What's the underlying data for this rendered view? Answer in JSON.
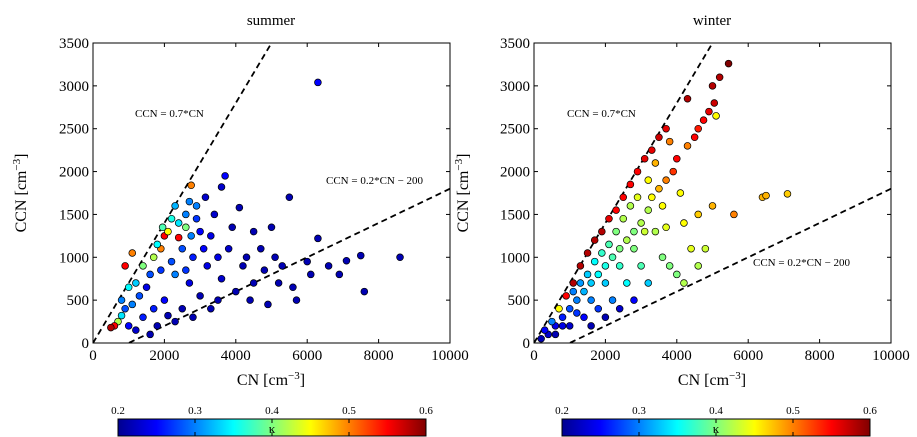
{
  "chart_data": [
    {
      "type": "scatter",
      "title": "summer",
      "xlabel": "CN [cm",
      "ylabel": "CCN [cm",
      "unit_exponent": "−3",
      "xlim": [
        0,
        10000
      ],
      "ylim": [
        0,
        3500
      ],
      "xticks": [
        0,
        2000,
        4000,
        6000,
        8000,
        10000
      ],
      "yticks": [
        0,
        500,
        1000,
        1500,
        2000,
        2500,
        3000,
        3500
      ],
      "color_variable": "κ",
      "lines": [
        {
          "label": "CCN = 0.7*CN",
          "slope": 0.7,
          "intercept": 0
        },
        {
          "label": "CCN = 0.2*CN − 200",
          "slope": 0.2,
          "intercept": -200
        }
      ],
      "points": [
        [
          6300,
          3040,
          0.25
        ],
        [
          2750,
          1840,
          0.5
        ],
        [
          3700,
          1950,
          0.25
        ],
        [
          2700,
          1650,
          0.3
        ],
        [
          2300,
          1600,
          0.32
        ],
        [
          2900,
          1600,
          0.3
        ],
        [
          3600,
          1820,
          0.23
        ],
        [
          5500,
          1700,
          0.22
        ],
        [
          4100,
          1580,
          0.22
        ],
        [
          2200,
          1450,
          0.36
        ],
        [
          2600,
          1500,
          0.3
        ],
        [
          2000,
          1250,
          0.55
        ],
        [
          2400,
          1230,
          0.55
        ],
        [
          1900,
          1100,
          0.5
        ],
        [
          900,
          900,
          0.55
        ],
        [
          1100,
          1050,
          0.5
        ],
        [
          1800,
          1150,
          0.35
        ],
        [
          3000,
          1300,
          0.25
        ],
        [
          3300,
          1250,
          0.24
        ],
        [
          4500,
          1300,
          0.22
        ],
        [
          5000,
          1350,
          0.22
        ],
        [
          6300,
          1220,
          0.22
        ],
        [
          6000,
          950,
          0.22
        ],
        [
          7100,
          960,
          0.22
        ],
        [
          7500,
          1020,
          0.22
        ],
        [
          8600,
          1000,
          0.22
        ],
        [
          6900,
          800,
          0.22
        ],
        [
          7600,
          600,
          0.22
        ],
        [
          5700,
          500,
          0.22
        ],
        [
          5200,
          700,
          0.22
        ],
        [
          4800,
          850,
          0.22
        ],
        [
          4300,
          1000,
          0.22
        ],
        [
          3800,
          1100,
          0.23
        ],
        [
          3200,
          900,
          0.24
        ],
        [
          2800,
          1000,
          0.26
        ],
        [
          2500,
          1100,
          0.28
        ],
        [
          2200,
          950,
          0.28
        ],
        [
          1900,
          850,
          0.27
        ],
        [
          1600,
          800,
          0.28
        ],
        [
          1500,
          650,
          0.24
        ],
        [
          1300,
          550,
          0.28
        ],
        [
          1100,
          450,
          0.3
        ],
        [
          900,
          400,
          0.28
        ],
        [
          800,
          320,
          0.34
        ],
        [
          700,
          250,
          0.42
        ],
        [
          600,
          200,
          0.55
        ],
        [
          500,
          180,
          0.58
        ],
        [
          1000,
          200,
          0.25
        ],
        [
          1200,
          150,
          0.23
        ],
        [
          1600,
          100,
          0.22
        ],
        [
          1800,
          200,
          0.22
        ],
        [
          2100,
          320,
          0.22
        ],
        [
          2500,
          400,
          0.22
        ],
        [
          3000,
          550,
          0.22
        ],
        [
          3500,
          500,
          0.22
        ],
        [
          4000,
          600,
          0.22
        ],
        [
          4500,
          700,
          0.22
        ],
        [
          5300,
          900,
          0.22
        ],
        [
          4700,
          1100,
          0.22
        ],
        [
          3600,
          750,
          0.23
        ],
        [
          2700,
          700,
          0.24
        ],
        [
          2000,
          500,
          0.25
        ],
        [
          1700,
          400,
          0.26
        ],
        [
          3900,
          1350,
          0.22
        ],
        [
          3400,
          1500,
          0.23
        ],
        [
          2900,
          1450,
          0.27
        ],
        [
          2600,
          1350,
          0.4
        ],
        [
          2100,
          1300,
          0.45
        ],
        [
          1700,
          1000,
          0.42
        ],
        [
          1400,
          900,
          0.4
        ],
        [
          1200,
          700,
          0.33
        ],
        [
          2300,
          800,
          0.3
        ],
        [
          3100,
          1100,
          0.25
        ],
        [
          4200,
          900,
          0.22
        ],
        [
          5100,
          1000,
          0.22
        ],
        [
          5600,
          650,
          0.22
        ],
        [
          6100,
          800,
          0.22
        ],
        [
          6600,
          900,
          0.22
        ],
        [
          4900,
          450,
          0.22
        ],
        [
          4400,
          500,
          0.22
        ],
        [
          3300,
          400,
          0.22
        ],
        [
          2800,
          300,
          0.22
        ],
        [
          2300,
          250,
          0.22
        ],
        [
          1400,
          300,
          0.26
        ],
        [
          800,
          500,
          0.3
        ],
        [
          1000,
          650,
          0.35
        ],
        [
          2600,
          850,
          0.27
        ],
        [
          3500,
          1000,
          0.24
        ],
        [
          2400,
          1400,
          0.34
        ],
        [
          1950,
          1350,
          0.38
        ],
        [
          2750,
          1250,
          0.3
        ],
        [
          3150,
          1700,
          0.23
        ]
      ]
    },
    {
      "type": "scatter",
      "title": "winter",
      "xlabel": "CN [cm",
      "ylabel": "CCN [cm",
      "unit_exponent": "−3",
      "xlim": [
        0,
        10000
      ],
      "ylim": [
        0,
        3500
      ],
      "xticks": [
        0,
        2000,
        4000,
        6000,
        8000,
        10000
      ],
      "yticks": [
        0,
        500,
        1000,
        1500,
        2000,
        2500,
        3000,
        3500
      ],
      "color_variable": "κ",
      "lines": [
        {
          "label": "CCN = 0.7*CN",
          "slope": 0.7,
          "intercept": 0
        },
        {
          "label": "CCN = 0.2*CN − 200",
          "slope": 0.2,
          "intercept": -200
        }
      ],
      "points": [
        [
          5450,
          3260,
          0.6
        ],
        [
          5200,
          3100,
          0.58
        ],
        [
          5000,
          3000,
          0.58
        ],
        [
          5050,
          2800,
          0.57
        ],
        [
          4900,
          2700,
          0.56
        ],
        [
          4750,
          2600,
          0.55
        ],
        [
          4600,
          2500,
          0.54
        ],
        [
          5100,
          2650,
          0.45
        ],
        [
          4500,
          2400,
          0.55
        ],
        [
          4300,
          2300,
          0.5
        ],
        [
          4000,
          2150,
          0.55
        ],
        [
          3900,
          2000,
          0.53
        ],
        [
          3700,
          1900,
          0.5
        ],
        [
          3500,
          1800,
          0.48
        ],
        [
          3300,
          1700,
          0.45
        ],
        [
          4100,
          1750,
          0.45
        ],
        [
          3600,
          1600,
          0.45
        ],
        [
          3200,
          1550,
          0.42
        ],
        [
          3000,
          1400,
          0.42
        ],
        [
          2800,
          1300,
          0.4
        ],
        [
          2600,
          1200,
          0.42
        ],
        [
          2400,
          1100,
          0.4
        ],
        [
          2200,
          1000,
          0.38
        ],
        [
          2000,
          900,
          0.36
        ],
        [
          1800,
          800,
          0.35
        ],
        [
          1600,
          700,
          0.33
        ],
        [
          1400,
          600,
          0.32
        ],
        [
          1200,
          500,
          0.3
        ],
        [
          1000,
          400,
          0.28
        ],
        [
          800,
          300,
          0.26
        ],
        [
          600,
          200,
          0.24
        ],
        [
          400,
          100,
          0.23
        ],
        [
          200,
          50,
          0.22
        ],
        [
          300,
          150,
          0.25
        ],
        [
          500,
          250,
          0.3
        ],
        [
          700,
          400,
          0.45
        ],
        [
          900,
          550,
          0.55
        ],
        [
          1100,
          700,
          0.58
        ],
        [
          1300,
          900,
          0.58
        ],
        [
          1500,
          1050,
          0.58
        ],
        [
          1700,
          1200,
          0.58
        ],
        [
          1900,
          1300,
          0.58
        ],
        [
          2100,
          1450,
          0.56
        ],
        [
          2300,
          1550,
          0.55
        ],
        [
          2500,
          1700,
          0.55
        ],
        [
          2700,
          1850,
          0.55
        ],
        [
          2900,
          2000,
          0.55
        ],
        [
          3100,
          2150,
          0.56
        ],
        [
          3300,
          2250,
          0.56
        ],
        [
          3500,
          2400,
          0.57
        ],
        [
          3700,
          2500,
          0.56
        ],
        [
          4300,
          2850,
          0.58
        ],
        [
          3800,
          2350,
          0.5
        ],
        [
          3400,
          2100,
          0.48
        ],
        [
          3200,
          1900,
          0.45
        ],
        [
          2900,
          1700,
          0.44
        ],
        [
          2700,
          1600,
          0.42
        ],
        [
          2500,
          1450,
          0.42
        ],
        [
          2300,
          1300,
          0.4
        ],
        [
          2100,
          1150,
          0.38
        ],
        [
          1900,
          1050,
          0.37
        ],
        [
          1700,
          950,
          0.35
        ],
        [
          1500,
          800,
          0.33
        ],
        [
          1300,
          700,
          0.31
        ],
        [
          1100,
          600,
          0.3
        ],
        [
          3400,
          1300,
          0.42
        ],
        [
          3700,
          1350,
          0.44
        ],
        [
          4200,
          1400,
          0.45
        ],
        [
          4600,
          1500,
          0.47
        ],
        [
          5000,
          1600,
          0.48
        ],
        [
          6400,
          1700,
          0.48
        ],
        [
          6500,
          1720,
          0.48
        ],
        [
          7100,
          1740,
          0.47
        ],
        [
          5600,
          1500,
          0.5
        ],
        [
          4800,
          1100,
          0.43
        ],
        [
          4600,
          900,
          0.42
        ],
        [
          4200,
          700,
          0.42
        ],
        [
          4000,
          800,
          0.4
        ],
        [
          3800,
          900,
          0.4
        ],
        [
          3600,
          1000,
          0.4
        ],
        [
          3000,
          900,
          0.38
        ],
        [
          2600,
          700,
          0.35
        ],
        [
          2200,
          500,
          0.3
        ],
        [
          1800,
          400,
          0.27
        ],
        [
          1400,
          300,
          0.25
        ],
        [
          1000,
          200,
          0.23
        ],
        [
          600,
          100,
          0.22
        ],
        [
          1600,
          200,
          0.22
        ],
        [
          2000,
          300,
          0.22
        ],
        [
          2400,
          400,
          0.23
        ],
        [
          2800,
          500,
          0.25
        ],
        [
          3200,
          700,
          0.33
        ],
        [
          4400,
          1100,
          0.44
        ],
        [
          3100,
          1300,
          0.43
        ],
        [
          2800,
          1100,
          0.4
        ],
        [
          2400,
          900,
          0.37
        ],
        [
          2000,
          700,
          0.33
        ],
        [
          1600,
          500,
          0.3
        ],
        [
          1200,
          350,
          0.27
        ],
        [
          800,
          200,
          0.24
        ]
      ]
    }
  ],
  "colorbars": [
    {
      "min": 0.2,
      "max": 0.6,
      "ticks": [
        "0.2",
        "0.3",
        "0.4",
        "0.5",
        "0.6"
      ],
      "label": "κ",
      "colormap": "jet"
    },
    {
      "min": 0.2,
      "max": 0.6,
      "ticks": [
        "0.2",
        "0.3",
        "0.4",
        "0.5",
        "0.6"
      ],
      "label": "κ",
      "colormap": "jet"
    }
  ]
}
